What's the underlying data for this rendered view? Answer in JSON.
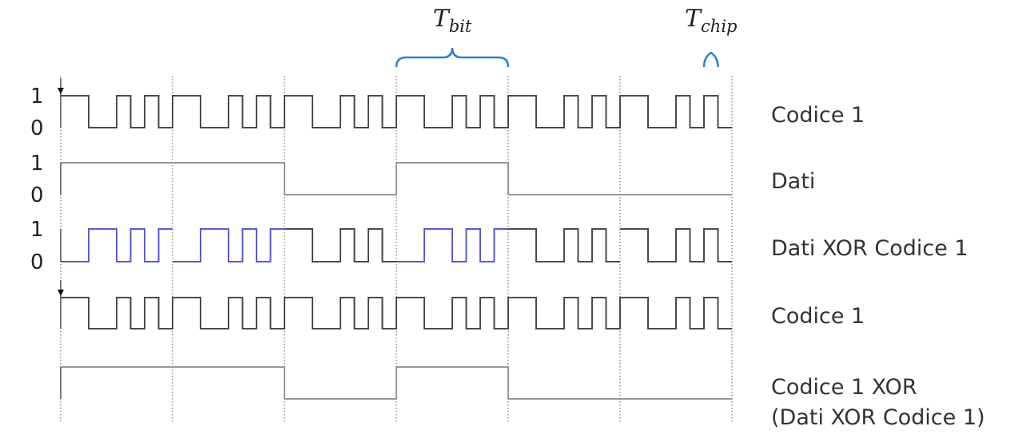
{
  "colors": {
    "signal": "#4a4a4a",
    "data": "#8a8a8a",
    "xor_highlight": "#5a5ad0",
    "brace": "#2a7fd4",
    "guides": "#555555"
  },
  "chips_per_bit": 8,
  "code_chips": [
    1,
    1,
    0,
    0,
    1,
    0,
    1,
    0
  ],
  "data_bits": [
    1,
    1,
    0,
    1,
    0,
    0
  ],
  "highlighted_bits": [
    0,
    1,
    3
  ],
  "rows": [
    {
      "id": "code1",
      "label": "Codice 1",
      "axis": {
        "high": "1",
        "low": "0"
      },
      "kind": "code",
      "arrow": true
    },
    {
      "id": "data",
      "label": "Dati",
      "axis": {
        "high": "1",
        "low": "0"
      },
      "kind": "data"
    },
    {
      "id": "xor",
      "label": "Dati XOR Codice 1",
      "axis": {
        "high": "1",
        "low": "0"
      },
      "kind": "xor"
    },
    {
      "id": "code1b",
      "label": "Codice 1",
      "axis": {
        "high": "",
        "low": ""
      },
      "kind": "code",
      "arrow": true
    },
    {
      "id": "decoded",
      "label": "Codice 1 XOR",
      "label2": "(Dati XOR Codice 1)",
      "axis": {
        "high": "",
        "low": ""
      },
      "kind": "data"
    }
  ],
  "annotations": {
    "t_bit": {
      "base": "T",
      "sub": "bit"
    },
    "t_chip": {
      "base": "T",
      "sub": "chip"
    }
  }
}
